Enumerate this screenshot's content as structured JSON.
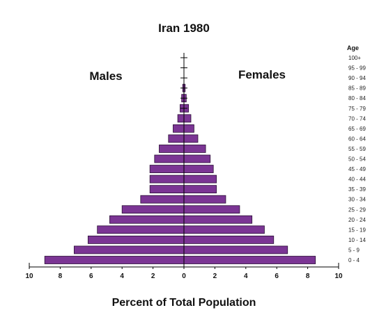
{
  "chart_data": {
    "type": "bar",
    "orientation": "horizontal-pyramid",
    "title": "Iran 1980",
    "xlabel": "Percent of Total Population",
    "age_axis_title": "Age",
    "left_label": "Males",
    "right_label": "Females",
    "xlim": [
      -10,
      10
    ],
    "x_ticks": [
      -10,
      -8,
      -6,
      -4,
      -2,
      0,
      2,
      4,
      6,
      8,
      10
    ],
    "x_tick_labels": [
      "10",
      "8",
      "6",
      "4",
      "2",
      "0",
      "2",
      "4",
      "6",
      "8",
      "10"
    ],
    "bar_color": "#7b3594",
    "bar_edge_color": "#2b0f36",
    "categories": [
      "0-4",
      "5-9",
      "10-14",
      "15-19",
      "20-24",
      "25-29",
      "30-34",
      "35-39",
      "40-44",
      "45-49",
      "50-54",
      "55-59",
      "60-64",
      "65-69",
      "70-74",
      "75-79",
      "80-84",
      "85-89",
      "90-94",
      "95-99",
      "100+"
    ],
    "category_labels": [
      "0 - 4",
      "5 - 9",
      "10 - 14",
      "15 - 19",
      "20 - 24",
      "25 - 29",
      "30 - 34",
      "35 - 39",
      "40 - 44",
      "45 - 49",
      "50 - 54",
      "55 - 59",
      "60 - 64",
      "65 - 69",
      "70 - 74",
      "75 - 79",
      "80 - 84",
      "85 - 89",
      "90 - 94",
      "95 - 99",
      "100+"
    ],
    "series": [
      {
        "name": "Males",
        "values": [
          9.0,
          7.1,
          6.2,
          5.6,
          4.8,
          4.0,
          2.8,
          2.2,
          2.2,
          2.2,
          1.9,
          1.6,
          1.0,
          0.7,
          0.4,
          0.25,
          0.15,
          0.08,
          0.04,
          0.02,
          0.01
        ]
      },
      {
        "name": "Females",
        "values": [
          8.5,
          6.7,
          5.8,
          5.2,
          4.4,
          3.6,
          2.7,
          2.1,
          2.1,
          1.9,
          1.7,
          1.4,
          0.9,
          0.65,
          0.45,
          0.3,
          0.15,
          0.08,
          0.04,
          0.02,
          0.01
        ]
      }
    ]
  }
}
